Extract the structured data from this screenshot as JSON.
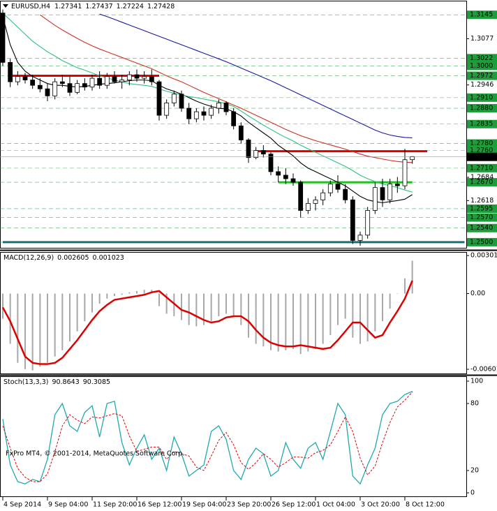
{
  "chart_data": [
    {
      "type": "candlestick",
      "title": "EURUSD,H4",
      "categories": [
        "4 Sep 2014",
        null,
        null,
        null,
        null,
        null,
        "9 Sep 04:00",
        null,
        null,
        null,
        null,
        null,
        "11 Sep 20:00",
        null,
        null,
        null,
        null,
        null,
        "16 Sep 12:00",
        null,
        null,
        null,
        null,
        null,
        "19 Sep 04:00",
        null,
        null,
        null,
        null,
        null,
        "23 Sep 20:00",
        null,
        null,
        null,
        null,
        null,
        "26 Sep 12:00",
        null,
        null,
        null,
        null,
        null,
        "1 Oct 04:00",
        null,
        null,
        null,
        null,
        null,
        "3 Oct 20:00",
        null,
        null,
        null,
        null,
        null,
        "8 Oct 12:00",
        null
      ],
      "open": [
        1.315,
        1.301,
        1.2955,
        1.297,
        1.296,
        1.2945,
        1.2935,
        1.2915,
        1.2955,
        1.295,
        1.2925,
        1.295,
        1.294,
        1.2965,
        1.2945,
        1.297,
        1.2955,
        1.296,
        1.2975,
        1.2965,
        1.297,
        1.2955,
        1.286,
        1.2895,
        1.292,
        1.288,
        1.285,
        1.287,
        1.286,
        1.288,
        1.2895,
        1.287,
        1.283,
        1.279,
        1.274,
        1.276,
        1.275,
        1.27,
        1.269,
        1.268,
        1.267,
        1.259,
        1.261,
        1.262,
        1.264,
        1.2665,
        1.265,
        1.262,
        1.2505,
        1.252,
        1.259,
        1.2655,
        1.262,
        1.2665,
        1.266,
        1.27341
      ],
      "high": [
        1.316,
        1.302,
        1.2985,
        1.298,
        1.2975,
        1.2965,
        1.295,
        1.2965,
        1.2975,
        1.297,
        1.296,
        1.2965,
        1.2975,
        1.2985,
        1.298,
        1.2985,
        1.2975,
        1.2985,
        1.299,
        1.2985,
        1.299,
        1.296,
        1.2905,
        1.293,
        1.293,
        1.2895,
        1.288,
        1.2885,
        1.289,
        1.2905,
        1.29,
        1.288,
        1.284,
        1.2795,
        1.277,
        1.2775,
        1.2755,
        1.2715,
        1.271,
        1.2695,
        1.2675,
        1.2625,
        1.263,
        1.265,
        1.2675,
        1.269,
        1.2665,
        1.263,
        1.253,
        1.26,
        1.267,
        1.268,
        1.268,
        1.2685,
        1.2765,
        1.27437
      ],
      "low": [
        1.3,
        1.294,
        1.2945,
        1.295,
        1.2935,
        1.2925,
        1.29,
        1.2905,
        1.294,
        1.2915,
        1.292,
        1.293,
        1.293,
        1.2935,
        1.2935,
        1.295,
        1.2935,
        1.2945,
        1.2955,
        1.295,
        1.2945,
        1.2845,
        1.285,
        1.2885,
        1.287,
        1.2835,
        1.284,
        1.2845,
        1.285,
        1.2865,
        1.286,
        1.282,
        1.278,
        1.2725,
        1.2735,
        1.274,
        1.269,
        1.267,
        1.2665,
        1.266,
        1.257,
        1.258,
        1.259,
        1.2605,
        1.263,
        1.264,
        1.261,
        1.2495,
        1.249,
        1.251,
        1.258,
        1.26,
        1.261,
        1.264,
        1.265,
        1.27224
      ],
      "close": [
        1.301,
        1.2955,
        1.297,
        1.296,
        1.2945,
        1.2935,
        1.2915,
        1.2955,
        1.295,
        1.2925,
        1.295,
        1.294,
        1.2965,
        1.2945,
        1.297,
        1.2955,
        1.296,
        1.2975,
        1.2965,
        1.297,
        1.2955,
        1.286,
        1.2895,
        1.292,
        1.288,
        1.285,
        1.287,
        1.286,
        1.288,
        1.2895,
        1.287,
        1.283,
        1.279,
        1.274,
        1.276,
        1.275,
        1.27,
        1.269,
        1.268,
        1.267,
        1.259,
        1.261,
        1.262,
        1.264,
        1.2665,
        1.265,
        1.262,
        1.2505,
        1.252,
        1.259,
        1.2655,
        1.262,
        1.2665,
        1.266,
        1.2734,
        1.27428
      ],
      "series": [
        {
          "color": "#000000",
          "values": [
            1.314,
            1.306,
            1.301,
            1.2985,
            1.297,
            1.296,
            1.295,
            1.2945,
            1.2945,
            1.2942,
            1.294,
            1.2942,
            1.2945,
            1.2948,
            1.295,
            1.2952,
            1.2955,
            1.2958,
            1.296,
            1.296,
            1.2958,
            1.2945,
            1.2935,
            1.2928,
            1.292,
            1.291,
            1.29,
            1.2892,
            1.2885,
            1.288,
            1.2878,
            1.287,
            1.2858,
            1.284,
            1.2825,
            1.281,
            1.2795,
            1.2775,
            1.276,
            1.2745,
            1.2725,
            1.271,
            1.27,
            1.269,
            1.268,
            1.267,
            1.266,
            1.2645,
            1.263,
            1.262,
            1.2615,
            1.2612,
            1.2615,
            1.2618,
            1.2622,
            1.2635
          ]
        },
        {
          "color": "#2ec27e",
          "values": [
            1.315,
            1.313,
            1.311,
            1.309,
            1.307,
            1.3055,
            1.304,
            1.3028,
            1.3015,
            1.3005,
            1.2995,
            1.2988,
            1.298,
            1.2972,
            1.2966,
            1.296,
            1.2955,
            1.295,
            1.2947,
            1.2945,
            1.2942,
            1.2935,
            1.2928,
            1.2923,
            1.2918,
            1.2913,
            1.291,
            1.2906,
            1.2902,
            1.2898,
            1.2893,
            1.2885,
            1.2872,
            1.2858,
            1.2845,
            1.2832,
            1.282,
            1.2808,
            1.2797,
            1.2787,
            1.2775,
            1.2765,
            1.2755,
            1.2745,
            1.2735,
            1.2725,
            1.2715,
            1.2703,
            1.269,
            1.268,
            1.2672,
            1.2665,
            1.266,
            1.2655,
            1.2648,
            1.2642
          ]
        },
        {
          "color": "#d03020",
          "values": [
            null,
            null,
            null,
            null,
            null,
            1.3145,
            1.313,
            1.3115,
            1.3102,
            1.309,
            1.3078,
            1.3067,
            1.3057,
            1.3048,
            1.304,
            1.3032,
            1.3024,
            1.3016,
            1.3008,
            1.3,
            1.2992,
            1.2982,
            1.2972,
            1.2963,
            1.2955,
            1.2945,
            1.2935,
            1.2925,
            1.2916,
            1.2907,
            1.2898,
            1.2889,
            1.288,
            1.287,
            1.286,
            1.285,
            1.284,
            1.283,
            1.282,
            1.2811,
            1.2802,
            1.2795,
            1.2788,
            1.2782,
            1.2776,
            1.277,
            1.2764,
            1.2757,
            1.275,
            1.2744,
            1.274,
            1.2736,
            1.2732,
            1.2729,
            1.2727,
            1.2726
          ]
        },
        {
          "color": "#1a1aa0",
          "values": [
            null,
            null,
            null,
            null,
            null,
            null,
            null,
            null,
            null,
            null,
            null,
            null,
            null,
            1.3147,
            1.314,
            1.3132,
            1.3124,
            1.3116,
            1.3108,
            1.31,
            1.3092,
            1.3084,
            1.3076,
            1.3068,
            1.306,
            1.3052,
            1.3044,
            1.3036,
            1.3028,
            1.302,
            1.3012,
            1.3003,
            1.2994,
            1.2985,
            1.2976,
            1.2967,
            1.2958,
            1.2948,
            1.2938,
            1.2928,
            1.2918,
            1.2908,
            1.2898,
            1.2888,
            1.2878,
            1.2868,
            1.2858,
            1.2848,
            1.2838,
            1.2828,
            1.2818,
            1.281,
            1.2804,
            1.28,
            1.2797,
            1.2796
          ]
        }
      ],
      "ylim": [
        1.2484,
        1.3183
      ],
      "yticks": [
        1.3077,
        1.2946,
        1.2684,
        1.2618
      ],
      "levels": [
        1.3145,
        1.3022,
        {
          "value": 1.3,
          "label": "1.3000"
        },
        1.2972,
        {
          "value": 1.291,
          "label": "1.2910"
        },
        {
          "value": 1.288,
          "label": "1.2880"
        },
        1.2835,
        {
          "value": 1.278,
          "label": "1.2780"
        },
        {
          "value": 1.276,
          "label": "1.2760"
        },
        {
          "value": 1.271,
          "label": "1.2710"
        },
        {
          "value": 1.267,
          "label": "1.2670"
        },
        1.2595,
        {
          "value": 1.257,
          "label": "1.2570"
        },
        {
          "value": 1.254,
          "label": "1.2540"
        },
        {
          "value": 1.25,
          "label": "1.2500"
        }
      ],
      "level_color": "#1e9e3a",
      "last_price": 1.2742,
      "hlines": [
        {
          "value": 1.2972,
          "color": "#e00000",
          "from": 1,
          "to": 21
        },
        {
          "value": 1.2758,
          "color": "#e00000",
          "from": 34,
          "to": 57
        },
        {
          "value": 1.267,
          "color": "#20c020",
          "from": 37,
          "to": 55
        },
        {
          "value": 1.25,
          "color": "#1a6e78",
          "from": 0,
          "to": 62
        }
      ]
    },
    {
      "type": "macd",
      "title": "MACD(12,26,9)",
      "series": [
        {
          "style": "histogram",
          "color": "#a8a8a8",
          "values": [
            -0.002,
            -0.004,
            -0.0055,
            -0.006,
            -0.0061,
            -0.0058,
            -0.0055,
            -0.005,
            -0.0045,
            -0.0038,
            -0.003,
            -0.0022,
            -0.0015,
            -0.0008,
            -0.0004,
            -0.0002,
            -0.0001,
            0.0001,
            0.0002,
            0.0003,
            0.0003,
            -0.001,
            -0.0016,
            -0.0018,
            -0.0021,
            -0.0025,
            -0.0026,
            -0.0025,
            -0.0022,
            -0.0018,
            -0.0016,
            -0.0019,
            -0.0025,
            -0.0035,
            -0.004,
            -0.0042,
            -0.0045,
            -0.0046,
            -0.0045,
            -0.0044,
            -0.0048,
            -0.0046,
            -0.0044,
            -0.004,
            -0.0033,
            -0.0025,
            -0.002,
            -0.0035,
            -0.004,
            -0.0038,
            -0.003,
            -0.0022,
            -0.0012,
            0.0,
            0.0012,
            0.002605
          ]
        },
        {
          "style": "line",
          "color": "#dd0000",
          "values": [
            -0.0011,
            -0.0022,
            -0.0036,
            -0.005,
            -0.0055,
            -0.0056,
            -0.0056,
            -0.0055,
            -0.0051,
            -0.0044,
            -0.0037,
            -0.0029,
            -0.0021,
            -0.0014,
            -0.0009,
            -0.0005,
            -0.0004,
            -0.0003,
            -0.0002,
            -0.0001,
            0.0001,
            0.0002,
            -0.0003,
            -0.0008,
            -0.0013,
            -0.0015,
            -0.0018,
            -0.0021,
            -0.0023,
            -0.0022,
            -0.0019,
            -0.0018,
            -0.0018,
            -0.0022,
            -0.0029,
            -0.0035,
            -0.0039,
            -0.0041,
            -0.0042,
            -0.0042,
            -0.0041,
            -0.0042,
            -0.0043,
            -0.0044,
            -0.0043,
            -0.0037,
            -0.003,
            -0.0023,
            -0.0023,
            -0.0029,
            -0.0035,
            -0.0033,
            -0.0023,
            -0.0014,
            -0.0004,
            0.001023
          ]
        }
      ],
      "ylim": [
        -0.0064,
        0.00324
      ],
      "yticks": [
        0.003015,
        {
          "value": 0,
          "label": "0.00"
        },
        -0.006013
      ]
    },
    {
      "type": "line",
      "title": "Stoch(13,3,3)",
      "series": [
        {
          "color": "#20a8b0",
          "dashed": false,
          "values": [
            66,
            25,
            10,
            8,
            12,
            10,
            30,
            70,
            80,
            60,
            55,
            72,
            78,
            50,
            80,
            82,
            45,
            25,
            40,
            52,
            30,
            40,
            20,
            50,
            35,
            15,
            20,
            25,
            55,
            60,
            48,
            20,
            12,
            30,
            40,
            35,
            15,
            20,
            45,
            30,
            22,
            40,
            45,
            30,
            55,
            80,
            70,
            15,
            8,
            25,
            40,
            70,
            80,
            82,
            88,
            90.8643
          ]
        },
        {
          "color": "#e00000",
          "dashed": true,
          "values": [
            60,
            40,
            22,
            14,
            10,
            10,
            17,
            37,
            60,
            70,
            65,
            62,
            68,
            67,
            69,
            71,
            69,
            51,
            37,
            39,
            41,
            41,
            30,
            37,
            35,
            33,
            23,
            20,
            33,
            47,
            54,
            43,
            27,
            21,
            27,
            35,
            30,
            23,
            27,
            32,
            32,
            31,
            36,
            38,
            43,
            55,
            68,
            55,
            31,
            16,
            24,
            45,
            63,
            77,
            83,
            90.3085
          ]
        }
      ],
      "ylim": [
        -3.75,
        103.75
      ],
      "yticks": [
        100,
        80,
        20,
        0
      ],
      "annotation": "FxPro MT4, © 2001-2014, MetaQuotes Software Corp."
    }
  ]
}
